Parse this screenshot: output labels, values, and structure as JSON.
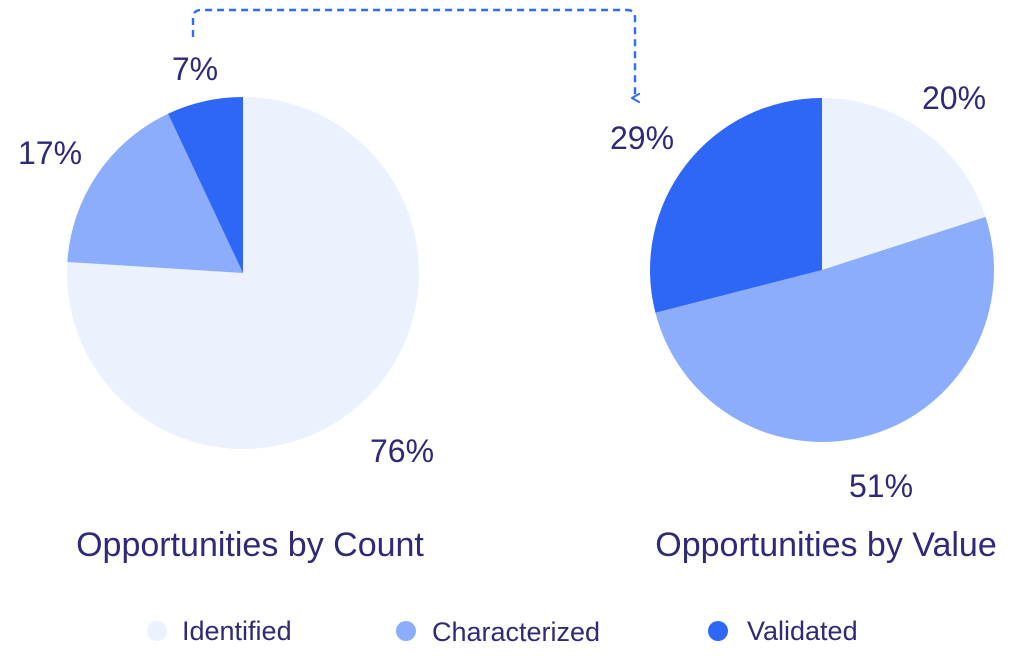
{
  "colors": {
    "text": "#2e2a78",
    "connector": "#2f6cf6",
    "identified": "#ebf2fe",
    "characterized": "#8cacfc",
    "validated": "#2e66f6"
  },
  "legend": [
    {
      "label": "Identified",
      "color": "#ebf2fe"
    },
    {
      "label": "Characterized",
      "color": "#8cacfc"
    },
    {
      "label": "Validated",
      "color": "#2e66f6"
    }
  ],
  "chart_data": [
    {
      "type": "pie",
      "title": "Opportunities by Count",
      "categories": [
        "Identified",
        "Characterized",
        "Validated"
      ],
      "values": [
        76,
        17,
        7
      ],
      "labels": [
        "76%",
        "17%",
        "7%"
      ]
    },
    {
      "type": "pie",
      "title": "Opportunities by Value",
      "categories": [
        "Identified",
        "Characterized",
        "Validated"
      ],
      "values": [
        20,
        51,
        29
      ],
      "labels": [
        "20%",
        "51%",
        "29%"
      ]
    }
  ]
}
